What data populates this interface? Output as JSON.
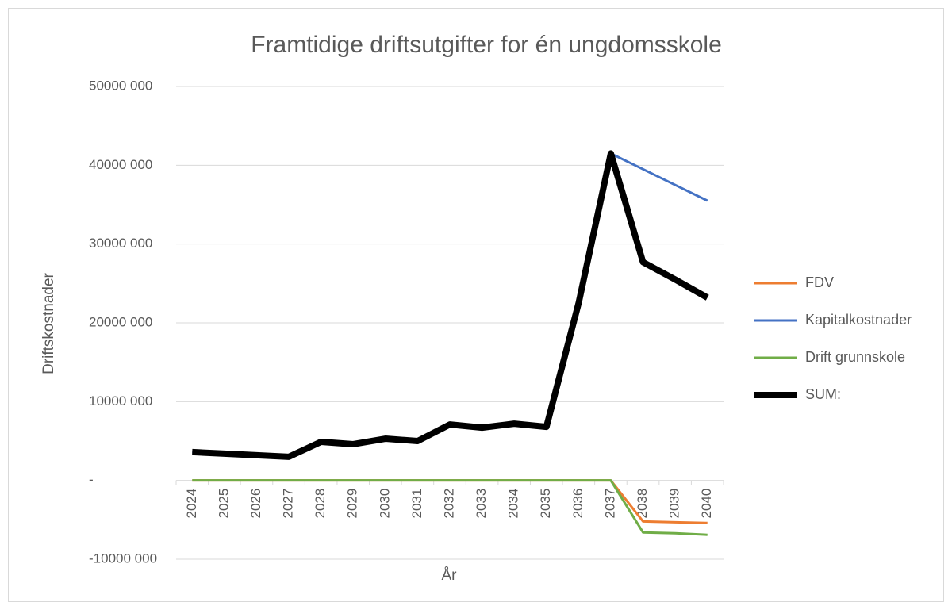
{
  "chart_data": {
    "type": "line",
    "title": "Framtidige driftsutgifter for én ungdomsskole",
    "x_label": "År",
    "y_label": "Driftskostnader",
    "categories": [
      "2024",
      "2025",
      "2026",
      "2027",
      "2028",
      "2029",
      "2030",
      "2031",
      "2032",
      "2033",
      "2034",
      "2035",
      "2036",
      "2037",
      "2038",
      "2039",
      "2040"
    ],
    "series": [
      {
        "name": "FDV",
        "color": "#ed7d31",
        "values": [
          0,
          0,
          0,
          0,
          0,
          0,
          0,
          0,
          0,
          0,
          0,
          0,
          0,
          0,
          -5200000,
          -5300000,
          -5400000
        ]
      },
      {
        "name": "Kapitalkostnader",
        "color": "#4472c4",
        "values": [
          3600000,
          3400000,
          3200000,
          3000000,
          4900000,
          4600000,
          5300000,
          5000000,
          7100000,
          6700000,
          7200000,
          6800000,
          22500000,
          41500000,
          39500000,
          37500000,
          35500000
        ]
      },
      {
        "name": "Drift grunnskole",
        "color": "#70ad47",
        "values": [
          0,
          0,
          0,
          0,
          0,
          0,
          0,
          0,
          0,
          0,
          0,
          0,
          0,
          0,
          -6600000,
          -6700000,
          -6900000
        ]
      },
      {
        "name": "SUM:",
        "color": "#000000",
        "values": [
          3600000,
          3400000,
          3200000,
          3000000,
          4900000,
          4600000,
          5300000,
          5000000,
          7100000,
          6700000,
          7200000,
          6800000,
          22500000,
          41500000,
          27700000,
          25500000,
          23200000
        ]
      }
    ],
    "ylim": [
      -10000000,
      50000000
    ],
    "yticks": [
      {
        "value": -10000000,
        "label": "-10000 000"
      },
      {
        "value": 0,
        "label": "-"
      },
      {
        "value": 10000000,
        "label": "10000 000"
      },
      {
        "value": 20000000,
        "label": "20000 000"
      },
      {
        "value": 30000000,
        "label": "30000 000"
      },
      {
        "value": 40000000,
        "label": "40000 000"
      },
      {
        "value": 50000000,
        "label": "50000 000"
      }
    ],
    "grid": true,
    "legend": "right"
  }
}
